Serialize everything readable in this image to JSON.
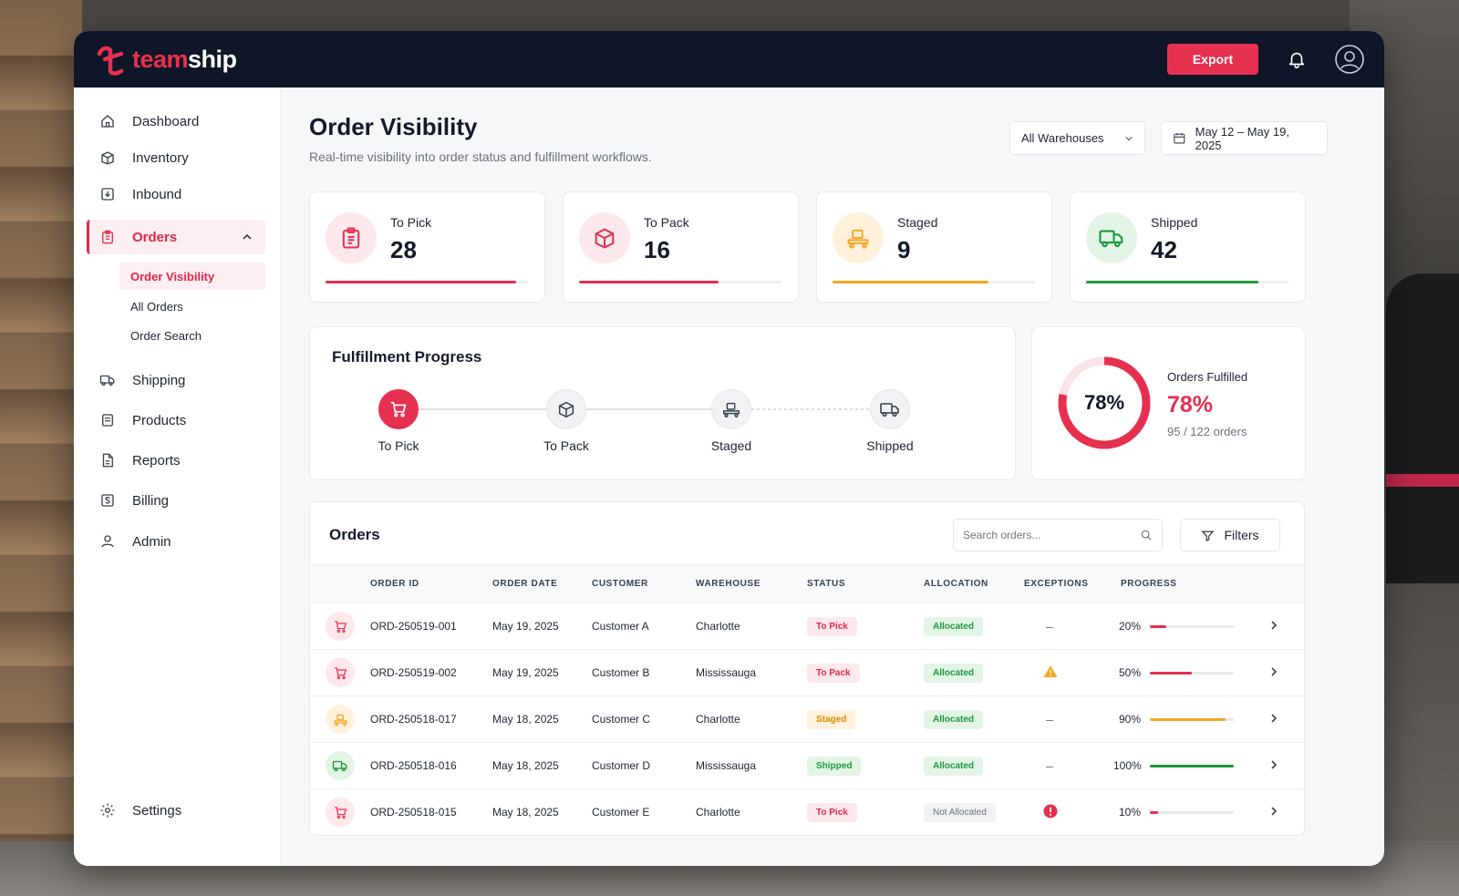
{
  "brand": {
    "name_a": "team",
    "name_b": "ship",
    "accent": "#e6304f",
    "dark": "#0e1628"
  },
  "topbar": {
    "export_label": "Export",
    "bell_icon": "bell-icon",
    "avatar_icon": "user-avatar-icon"
  },
  "sidebar": {
    "items": [
      {
        "label": "Dashboard",
        "icon": "home-icon"
      },
      {
        "label": "Inventory",
        "icon": "box-icon"
      },
      {
        "label": "Inbound",
        "icon": "inbound-icon"
      },
      {
        "label": "Orders",
        "icon": "clipboard-icon",
        "active": true
      },
      {
        "label": "Shipping",
        "icon": "truck-icon"
      },
      {
        "label": "Products",
        "icon": "package-icon"
      },
      {
        "label": "Reports",
        "icon": "document-icon"
      },
      {
        "label": "Billing",
        "icon": "billing-icon"
      },
      {
        "label": "Admin",
        "icon": "user-icon"
      }
    ],
    "orders_sub": [
      {
        "label": "Order Visibility",
        "active": true
      },
      {
        "label": "All Orders"
      },
      {
        "label": "Order Search"
      }
    ],
    "settings_label": "Settings"
  },
  "header": {
    "title": "Order Visibility",
    "subtitle": "Real-time visibility into order status and fulfillment workflows.",
    "warehouse_filter": "All Warehouses",
    "date_range": "May 12 – May 19, 2025"
  },
  "stats": [
    {
      "label": "To Pick",
      "value": "28",
      "progress": 0.94,
      "color": "#e6304f",
      "bg": "#fde8ec",
      "icon": "clipboard-icon"
    },
    {
      "label": "To Pack",
      "value": "16",
      "progress": 0.69,
      "color": "#e6304f",
      "bg": "#fde8ec",
      "icon": "box-icon"
    },
    {
      "label": "Staged",
      "value": "9",
      "progress": 0.77,
      "color": "#f5a623",
      "bg": "#fff1dc",
      "icon": "cart-platform-icon"
    },
    {
      "label": "Shipped",
      "value": "42",
      "progress": 0.85,
      "color": "#1e9a3a",
      "bg": "#e3f5e6",
      "icon": "truck-icon"
    }
  ],
  "fulfillment": {
    "title": "Fulfillment Progress",
    "steps": [
      {
        "label": "To Pick",
        "icon": "cart-icon",
        "active": true
      },
      {
        "label": "To Pack",
        "icon": "box-icon"
      },
      {
        "label": "Staged",
        "icon": "cart-platform-icon"
      },
      {
        "label": "Shipped",
        "icon": "truck-icon"
      }
    ]
  },
  "donut": {
    "center": "78%",
    "label": "Orders Fulfilled",
    "value": "78%",
    "detail": "95 / 122 orders",
    "fraction": 0.78
  },
  "orders": {
    "title": "Orders",
    "search_placeholder": "Search orders...",
    "filters_label": "Filters",
    "columns": [
      "ORDER ID",
      "ORDER DATE",
      "CUSTOMER",
      "WAREHOUSE",
      "STATUS",
      "ALLOCATION",
      "EXCEPTIONS",
      "PROGRESS"
    ],
    "rows": [
      {
        "id": "ORD-250519-001",
        "date": "May 19, 2025",
        "customer": "Customer A",
        "warehouse": "Charlotte",
        "status": "To Pick",
        "status_kind": "pick",
        "allocation": "Allocated",
        "alloc_kind": "alloc",
        "exception": "–",
        "progress_label": "20%",
        "progress": 0.2,
        "color": "#e6304f",
        "icon": "cart-icon",
        "icon_bg": "#fde8ec"
      },
      {
        "id": "ORD-250519-002",
        "date": "May 19, 2025",
        "customer": "Customer B",
        "warehouse": "Mississauga",
        "status": "To Pack",
        "status_kind": "pack",
        "allocation": "Allocated",
        "alloc_kind": "alloc",
        "exception": "warning",
        "progress_label": "50%",
        "progress": 0.5,
        "color": "#e6304f",
        "icon": "cart-icon",
        "icon_bg": "#fde8ec"
      },
      {
        "id": "ORD-250518-017",
        "date": "May 18, 2025",
        "customer": "Customer C",
        "warehouse": "Charlotte",
        "status": "Staged",
        "status_kind": "staged",
        "allocation": "Allocated",
        "alloc_kind": "alloc",
        "exception": "–",
        "progress_label": "90%",
        "progress": 0.9,
        "color": "#f5a623",
        "icon": "cart-platform-icon",
        "icon_bg": "#fff1dc"
      },
      {
        "id": "ORD-250518-016",
        "date": "May 18, 2025",
        "customer": "Customer D",
        "warehouse": "Mississauga",
        "status": "Shipped",
        "status_kind": "shipped",
        "allocation": "Allocated",
        "alloc_kind": "alloc",
        "exception": "–",
        "progress_label": "100%",
        "progress": 1.0,
        "color": "#1e9a3a",
        "icon": "truck-icon",
        "icon_bg": "#e3f5e6"
      },
      {
        "id": "ORD-250518-015",
        "date": "May 18, 2025",
        "customer": "Customer E",
        "warehouse": "Charlotte",
        "status": "To Pick",
        "status_kind": "pick",
        "allocation": "Not Allocated",
        "alloc_kind": "notalloc",
        "exception": "error",
        "progress_label": "10%",
        "progress": 0.1,
        "color": "#e6304f",
        "icon": "cart-icon",
        "icon_bg": "#fde8ec"
      }
    ]
  }
}
